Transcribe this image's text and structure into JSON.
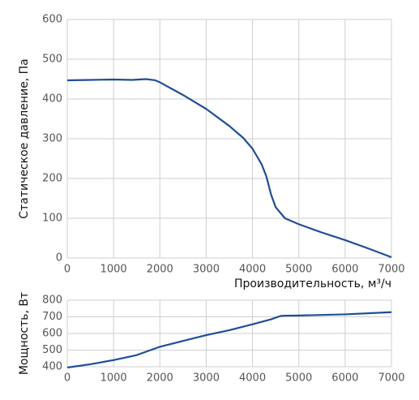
{
  "chart_data": [
    {
      "type": "line",
      "xlabel": "Производительность, м³/ч",
      "ylabel": "Статическое давление, Па",
      "x": [
        0,
        500,
        1000,
        1400,
        1700,
        1900,
        2000,
        2500,
        3000,
        3500,
        3800,
        4000,
        4200,
        4300,
        4400,
        4500,
        4700,
        5000,
        5500,
        6000,
        6500,
        7000
      ],
      "values": [
        447,
        448,
        449,
        448,
        450,
        447,
        442,
        410,
        375,
        332,
        302,
        275,
        235,
        205,
        160,
        128,
        100,
        85,
        64,
        45,
        24,
        2
      ],
      "color": "#1f4e96",
      "xlim": [
        0,
        7000
      ],
      "ylim": [
        0,
        600
      ],
      "xticks": [
        0,
        1000,
        2000,
        3000,
        4000,
        5000,
        6000,
        7000
      ],
      "yticks": [
        0,
        100,
        200,
        300,
        400,
        500,
        600
      ],
      "grid": true
    },
    {
      "type": "line",
      "ylabel": "Мощность, Вт",
      "x": [
        0,
        500,
        1000,
        1500,
        2000,
        2500,
        3000,
        3500,
        4000,
        4400,
        4600,
        4700,
        5000,
        6000,
        7000
      ],
      "values": [
        395,
        415,
        440,
        470,
        520,
        555,
        590,
        620,
        655,
        685,
        705,
        707,
        708,
        715,
        728
      ],
      "color": "#1f4e96",
      "xlim": [
        0,
        7000
      ],
      "ylim": [
        400,
        800
      ],
      "xticks": [
        0,
        1000,
        2000,
        3000,
        4000,
        5000,
        6000,
        7000
      ],
      "yticks": [
        400,
        500,
        600,
        700,
        800
      ],
      "grid": true
    }
  ]
}
